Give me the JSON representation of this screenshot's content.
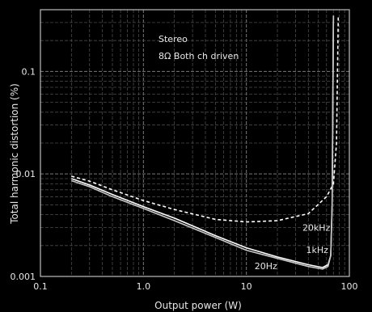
{
  "chart_data": {
    "type": "line",
    "title": "",
    "xlabel": "Output power (W)",
    "ylabel": "Total harmonic distortion (%)",
    "x_scale": "log",
    "y_scale": "log",
    "xlim": [
      0.1,
      100
    ],
    "ylim": [
      0.001,
      0.4
    ],
    "grid": true,
    "x_ticks": [
      {
        "value": 0.1,
        "label": "0.1"
      },
      {
        "value": 1,
        "label": "1.0"
      },
      {
        "value": 10,
        "label": "10"
      },
      {
        "value": 100,
        "label": "100"
      }
    ],
    "y_ticks": [
      {
        "value": 0.001,
        "label": "0.001"
      },
      {
        "value": 0.01,
        "label": "0.01"
      },
      {
        "value": 0.1,
        "label": "0.1"
      }
    ],
    "annotation": [
      "Stereo",
      "8Ω Both ch driven"
    ],
    "series": [
      {
        "name": "20kHz",
        "style": "dashed",
        "color": "#ffffff",
        "x": [
          0.2,
          0.3,
          0.5,
          1,
          2,
          5,
          10,
          20,
          40,
          60,
          70,
          75,
          78
        ],
        "y": [
          0.0095,
          0.0085,
          0.007,
          0.0055,
          0.0045,
          0.0036,
          0.0034,
          0.0035,
          0.0041,
          0.006,
          0.008,
          0.02,
          0.35
        ]
      },
      {
        "name": "1kHz",
        "style": "solid",
        "color": "#ffffff",
        "x": [
          0.2,
          0.3,
          0.5,
          1,
          2,
          5,
          10,
          20,
          40,
          55,
          62,
          66,
          68,
          70
        ],
        "y": [
          0.009,
          0.0078,
          0.0063,
          0.0048,
          0.0037,
          0.0025,
          0.0019,
          0.00155,
          0.0013,
          0.00122,
          0.0013,
          0.0016,
          0.005,
          0.35
        ]
      },
      {
        "name": "20Hz",
        "style": "solid",
        "color": "#c8c8c8",
        "x": [
          0.2,
          0.3,
          0.5,
          1,
          2,
          5,
          10,
          20,
          40,
          55,
          62,
          66,
          68,
          70
        ],
        "y": [
          0.0086,
          0.0075,
          0.006,
          0.0046,
          0.0035,
          0.0024,
          0.0018,
          0.0015,
          0.00125,
          0.00118,
          0.00125,
          0.0016,
          0.005,
          0.35
        ]
      }
    ],
    "series_labels": [
      {
        "series": "20kHz",
        "x": 35,
        "y": 0.0028
      },
      {
        "series": "1kHz",
        "x": 38,
        "y": 0.0017
      },
      {
        "series": "20Hz",
        "x": 12,
        "y": 0.00118
      }
    ]
  }
}
